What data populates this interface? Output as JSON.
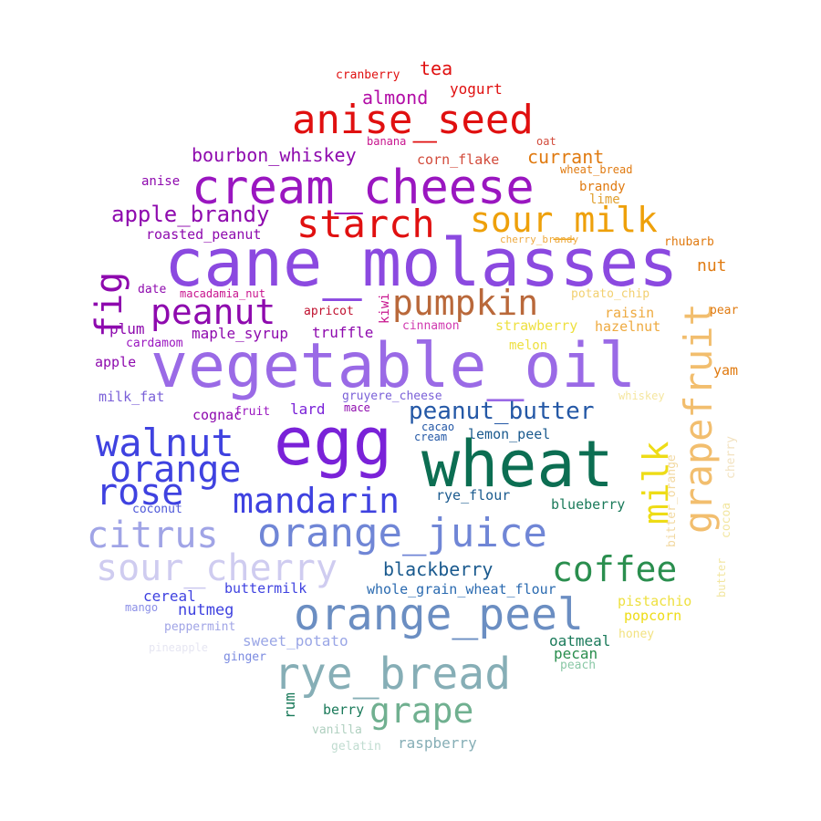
{
  "words": [
    {
      "text": "cane_molasses",
      "color": "#8B49E0"
    },
    {
      "text": "vegetable_oil",
      "color": "#9A6AE6"
    },
    {
      "text": "egg",
      "color": "#7A22D8"
    },
    {
      "text": "wheat",
      "color": "#0C6E52"
    },
    {
      "text": "cream_cheese",
      "color": "#9A16C0"
    },
    {
      "text": "anise_seed",
      "color": "#E01010"
    },
    {
      "text": "starch",
      "color": "#E01010"
    },
    {
      "text": "sour_milk",
      "color": "#EEA00A"
    },
    {
      "text": "pumpkin",
      "color": "#B9683A"
    },
    {
      "text": "peanut",
      "color": "#8E0AAE"
    },
    {
      "text": "fig",
      "color": "#8E0AAE"
    },
    {
      "text": "grapefruit",
      "color": "#F2BE6E"
    },
    {
      "text": "milk",
      "color": "#EEDC16"
    },
    {
      "text": "walnut",
      "color": "#3F42E0"
    },
    {
      "text": "orange",
      "color": "#3F42E0"
    },
    {
      "text": "rose",
      "color": "#3F42E0"
    },
    {
      "text": "mandarin",
      "color": "#3F42E0"
    },
    {
      "text": "citrus",
      "color": "#A0A4E6"
    },
    {
      "text": "orange_juice",
      "color": "#7086D6"
    },
    {
      "text": "sour_cherry",
      "color": "#CFCCF0"
    },
    {
      "text": "coffee",
      "color": "#2A8E4E"
    },
    {
      "text": "orange_peel",
      "color": "#6B8EC2"
    },
    {
      "text": "rye_bread",
      "color": "#86AEB6"
    },
    {
      "text": "grape",
      "color": "#70B090"
    },
    {
      "text": "peanut_butter",
      "color": "#2458A6"
    },
    {
      "text": "blackberry",
      "color": "#1A5A8E"
    },
    {
      "text": "bourbon_whiskey",
      "color": "#8E0AAE"
    },
    {
      "text": "apple_brandy",
      "color": "#8E0AAE"
    },
    {
      "text": "almond",
      "color": "#B20CA6"
    },
    {
      "text": "tea",
      "color": "#E01010"
    },
    {
      "text": "yogurt",
      "color": "#E01010"
    },
    {
      "text": "cranberry",
      "color": "#E01010"
    },
    {
      "text": "banana",
      "color": "#C8148E"
    },
    {
      "text": "oat",
      "color": "#D24A3A"
    },
    {
      "text": "corn_flake",
      "color": "#D24A3A"
    },
    {
      "text": "currant",
      "color": "#E07A10"
    },
    {
      "text": "wheat_bread",
      "color": "#E07A10"
    },
    {
      "text": "brandy",
      "color": "#E07A10"
    },
    {
      "text": "lime",
      "color": "#E0A030"
    },
    {
      "text": "anise",
      "color": "#8E0AAE"
    },
    {
      "text": "roasted_peanut",
      "color": "#8E0AAE"
    },
    {
      "text": "cherry_brandy",
      "color": "#EEAA40"
    },
    {
      "text": "rhubarb",
      "color": "#E07A10"
    },
    {
      "text": "nut",
      "color": "#E07A10"
    },
    {
      "text": "date",
      "color": "#8E0AAE"
    },
    {
      "text": "macadamia_nut",
      "color": "#C8148E"
    },
    {
      "text": "potato_chip",
      "color": "#F2D070"
    },
    {
      "text": "pear",
      "color": "#E07A10"
    },
    {
      "text": "apricot",
      "color": "#C0102E"
    },
    {
      "text": "kiwi",
      "color": "#C8148E"
    },
    {
      "text": "plum",
      "color": "#8E0AAE"
    },
    {
      "text": "maple_syrup",
      "color": "#8E0AAE"
    },
    {
      "text": "truffle",
      "color": "#8E0AAE"
    },
    {
      "text": "cinnamon",
      "color": "#D03AB0"
    },
    {
      "text": "strawberry",
      "color": "#EEE040"
    },
    {
      "text": "hazelnut",
      "color": "#EEAA40"
    },
    {
      "text": "cardamom",
      "color": "#9A16C0"
    },
    {
      "text": "melon",
      "color": "#EEE040"
    },
    {
      "text": "apple",
      "color": "#8E0AAE"
    },
    {
      "text": "yam",
      "color": "#E07A10"
    },
    {
      "text": "milk_fat",
      "color": "#7A60D8"
    },
    {
      "text": "gruyere_cheese",
      "color": "#7A60D8"
    },
    {
      "text": "whiskey",
      "color": "#F5E6A0"
    },
    {
      "text": "cognac",
      "color": "#8E0AAE"
    },
    {
      "text": "fruit",
      "color": "#9A16C0"
    },
    {
      "text": "lard",
      "color": "#7A22D8"
    },
    {
      "text": "mace",
      "color": "#8E0AAE"
    },
    {
      "text": "cacao",
      "color": "#2458A6"
    },
    {
      "text": "cream",
      "color": "#2458A6"
    },
    {
      "text": "lemon_peel",
      "color": "#1A5A8E"
    },
    {
      "text": "bitter_orange",
      "color": "#F2D8A0"
    },
    {
      "text": "cherry",
      "color": "#F2E2C0"
    },
    {
      "text": "cocoa",
      "color": "#F2E6A0"
    },
    {
      "text": "butter",
      "color": "#F2E6A0"
    },
    {
      "text": "rye_flour",
      "color": "#1A5A8E"
    },
    {
      "text": "blueberry",
      "color": "#1A7A5A"
    },
    {
      "text": "coconut",
      "color": "#4E58D8"
    },
    {
      "text": "buttermilk",
      "color": "#3F42E0"
    },
    {
      "text": "whole_grain_wheat_flour",
      "color": "#2A6AB0"
    },
    {
      "text": "cereal",
      "color": "#3F42E0"
    },
    {
      "text": "nutmeg",
      "color": "#3F42E0"
    },
    {
      "text": "mango",
      "color": "#8A8EE6"
    },
    {
      "text": "peppermint",
      "color": "#A0A4E6"
    },
    {
      "text": "pistachio",
      "color": "#EEE040"
    },
    {
      "text": "popcorn",
      "color": "#EEDC16"
    },
    {
      "text": "honey",
      "color": "#F2E280"
    },
    {
      "text": "sweet_potato",
      "color": "#9AA6E6"
    },
    {
      "text": "oatmeal",
      "color": "#1A7A5A"
    },
    {
      "text": "pecan",
      "color": "#2A8E4E"
    },
    {
      "text": "peach",
      "color": "#8AC8A6"
    },
    {
      "text": "pineapple",
      "color": "#E6E6F2"
    },
    {
      "text": "ginger",
      "color": "#7A8AE0"
    },
    {
      "text": "rum",
      "color": "#1A7A5A"
    },
    {
      "text": "berry",
      "color": "#1A7A5A"
    },
    {
      "text": "vanilla",
      "color": "#B0D0C0"
    },
    {
      "text": "gelatin",
      "color": "#C0DCD0"
    },
    {
      "text": "raspberry",
      "color": "#86AEB6"
    },
    {
      "text": "raisin",
      "color": "#EEAA40"
    }
  ]
}
